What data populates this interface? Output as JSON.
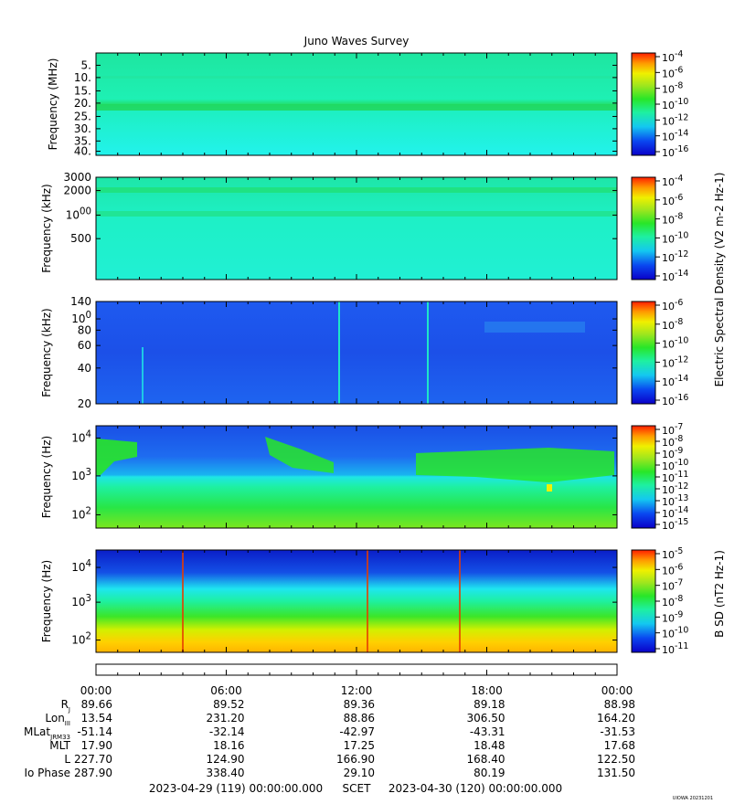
{
  "title": "Juno Waves Survey",
  "colors": {
    "accent_green": "#19e65a",
    "accent_cyan": "#1ff0d2",
    "background": "#ffffff"
  },
  "chart_data": [
    {
      "type": "heatmap",
      "ylabel": "Frequency (MHz)",
      "ytick_labels": [
        "5.",
        "10.",
        "15.",
        "20.",
        "25.",
        "30.",
        "35.",
        "40."
      ],
      "ylim": [
        3.5,
        41
      ],
      "yscale": "linear",
      "background_level": "1e-12",
      "features": [
        {
          "frequency": 21,
          "description": "bright band"
        },
        {
          "frequency": 28.5,
          "description": "faint band"
        }
      ],
      "colorbar": {
        "ticks": [
          "10-4",
          "10-6",
          "10-8",
          "10-10",
          "10-12",
          "10-14",
          "10-16"
        ]
      }
    },
    {
      "type": "heatmap",
      "ylabel": "Frequency (kHz)",
      "ytick_labels": [
        "3000",
        "2000",
        "1000",
        "500"
      ],
      "yscale": "log",
      "ylim": [
        150,
        3000
      ],
      "features": [
        {
          "frequency": 2000
        },
        {
          "frequency": 1000
        }
      ],
      "colorbar": {
        "ticks": [
          "10-4",
          "10-6",
          "10-8",
          "10-10",
          "10-12",
          "10-14"
        ],
        "label": "Electric Spectral Density (V2 m-2 Hz-1)"
      }
    },
    {
      "type": "heatmap",
      "ylabel": "Frequency (kHz)",
      "ytick_labels": [
        "140",
        "100",
        "80",
        "60",
        "40",
        "20"
      ],
      "yscale": "log",
      "ylim": [
        20,
        140
      ],
      "colorbar": {
        "ticks": [
          "10-6",
          "10-8",
          "10-10",
          "10-12",
          "10-14",
          "10-16"
        ]
      }
    },
    {
      "type": "heatmap",
      "ylabel": "Frequency (Hz)",
      "ytick_labels": [
        "104",
        "103",
        "102"
      ],
      "yscale": "log",
      "ylim": [
        50,
        20000
      ],
      "colorbar": {
        "ticks": [
          "10-7",
          "10-8",
          "10-9",
          "10-10",
          "10-11",
          "10-12",
          "10-13",
          "10-14",
          "10-15"
        ]
      }
    },
    {
      "type": "heatmap",
      "ylabel": "Frequency (Hz)",
      "ytick_labels": [
        "104",
        "103",
        "102"
      ],
      "yscale": "log",
      "ylim": [
        50,
        20000
      ],
      "colorbar": {
        "ticks": [
          "10-5",
          "10-6",
          "10-7",
          "10-8",
          "10-9",
          "10-10",
          "10-11"
        ],
        "label": "B SD (nT2 Hz-1)"
      }
    }
  ],
  "ephemeris": {
    "times": [
      "00:00",
      "06:00",
      "12:00",
      "18:00",
      "00:00"
    ],
    "rows": [
      {
        "label": "R",
        "sub": "J",
        "values": [
          "89.66",
          "89.52",
          "89.36",
          "89.18",
          "88.98"
        ]
      },
      {
        "label": "Lon",
        "sub": "III",
        "values": [
          "13.54",
          "231.20",
          "88.86",
          "306.50",
          "164.20"
        ]
      },
      {
        "label": "MLat",
        "sub": "JRM33",
        "values": [
          "-51.14",
          "-32.14",
          "-42.97",
          "-43.31",
          "-31.53"
        ]
      },
      {
        "label": "MLT",
        "sub": "",
        "values": [
          "17.90",
          "18.16",
          "17.25",
          "18.48",
          "17.68"
        ]
      },
      {
        "label": "L",
        "sub": "",
        "values": [
          "227.70",
          "124.90",
          "166.90",
          "168.40",
          "122.50"
        ]
      },
      {
        "label": "Io Phase",
        "sub": "",
        "values": [
          "287.90",
          "338.40",
          "29.10",
          "80.19",
          "131.50"
        ]
      }
    ]
  },
  "footer": {
    "start": "2023-04-29 (119) 00:00:00.000",
    "scet": "SCET",
    "end": "2023-04-30 (120) 00:00:00.000",
    "stamp": "UIOWA 20231201"
  }
}
